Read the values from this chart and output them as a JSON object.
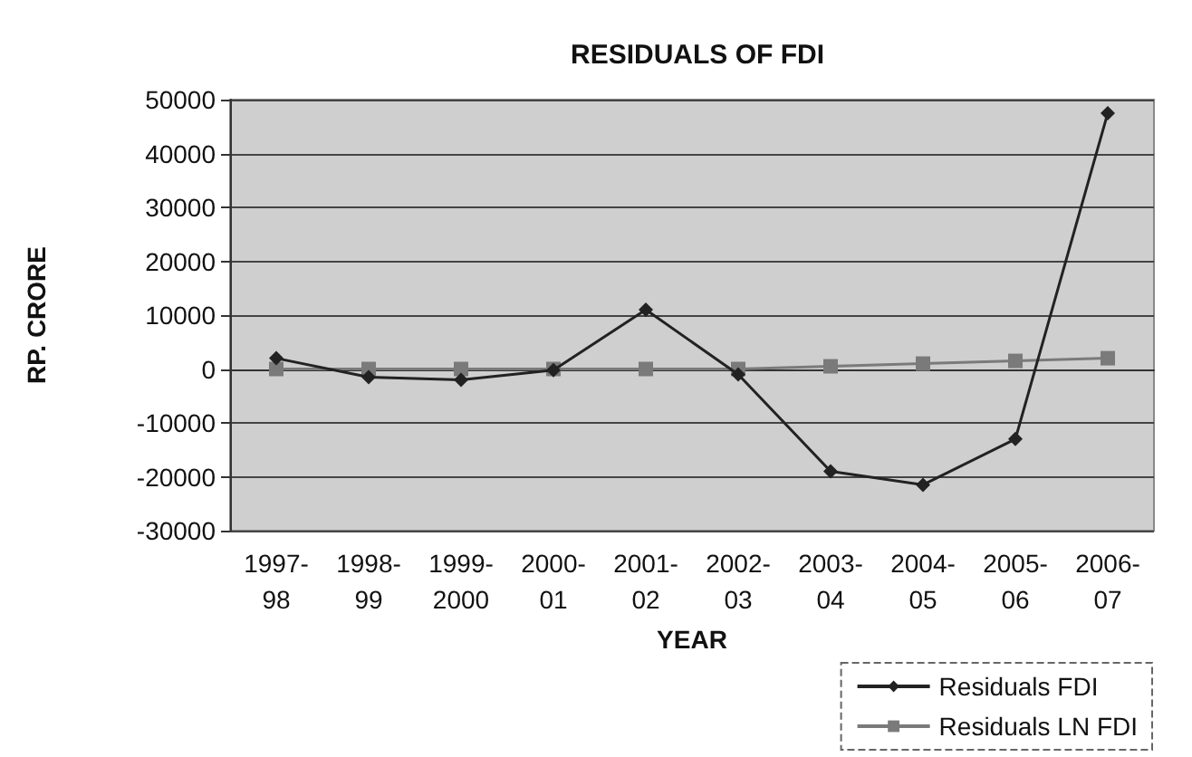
{
  "chart_data": {
    "type": "line",
    "title": "RESIDUALS OF FDI",
    "xlabel": "YEAR",
    "ylabel": "RP. CRORE",
    "categories": [
      "1997-98",
      "1998-99",
      "1999-2000",
      "2000-01",
      "2001-02",
      "2002-03",
      "2003-04",
      "2004-05",
      "2005-06",
      "2006-07"
    ],
    "series": [
      {
        "name": "Residuals FDI",
        "color": "#222222",
        "marker": "diamond",
        "values": [
          2000,
          -1500,
          -2000,
          -200,
          11000,
          -1000,
          -19000,
          -21500,
          -13000,
          47500
        ]
      },
      {
        "name": "Residuals LN FDI",
        "color": "#7a7a7a",
        "marker": "square",
        "values": [
          0,
          0,
          0,
          0,
          0,
          0,
          500,
          1000,
          1500,
          2000
        ]
      }
    ],
    "ylim": [
      -30000,
      50000
    ],
    "yticks": [
      -30000,
      -20000,
      -10000,
      0,
      10000,
      20000,
      30000,
      40000,
      50000
    ],
    "grid": "y",
    "legend": "bottom right",
    "line_style": "solid"
  }
}
